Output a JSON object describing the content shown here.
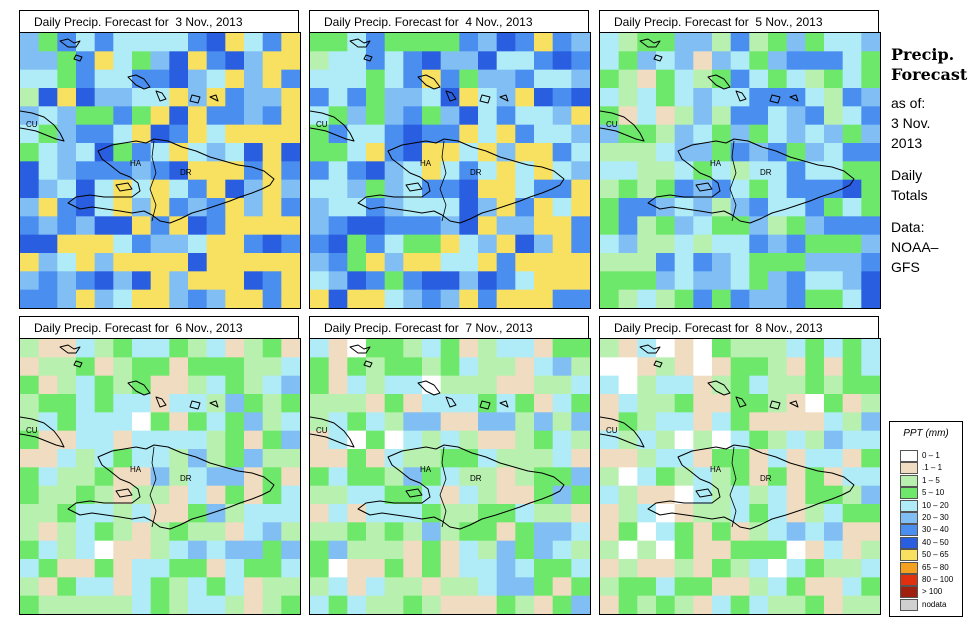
{
  "panels": [
    {
      "title": "Daily Precip. Forecast for  3 Nov., 2013",
      "wet": 0.95
    },
    {
      "title": "Daily Precip. Forecast for  4 Nov., 2013",
      "wet": 0.85
    },
    {
      "title": "Daily Precip. Forecast for  5 Nov., 2013",
      "wet": 0.55
    },
    {
      "title": "Daily Precip. Forecast for  6 Nov., 2013",
      "wet": 0.3
    },
    {
      "title": "Daily Precip. Forecast for  7 Nov., 2013",
      "wet": 0.28
    },
    {
      "title": "Daily Precip. Forecast for  8 Nov., 2013",
      "wet": 0.22
    }
  ],
  "map_labels": {
    "cuba": "CU",
    "haiti": "HA",
    "dominican_republic": "DR"
  },
  "info": {
    "title_line1": "Precip.",
    "title_line2": "Forecast",
    "asof": "as of:",
    "date_line1": "3 Nov.",
    "date_line2": "2013",
    "totals_line1": "Daily",
    "totals_line2": "Totals",
    "data_line1": "Data:",
    "data_line2": "NOAA–",
    "data_line3": "GFS"
  },
  "legend": {
    "title": "PPT (mm)",
    "items": [
      {
        "label": "0 – 1",
        "color": "#ffffff"
      },
      {
        "label": ".1 – 1",
        "color": "#f0dcc0"
      },
      {
        "label": "1 – 5",
        "color": "#b8f0b0"
      },
      {
        "label": "5 – 10",
        "color": "#6ee86a"
      },
      {
        "label": "10 – 20",
        "color": "#b0ecf8"
      },
      {
        "label": "20 – 30",
        "color": "#80bef4"
      },
      {
        "label": "30 – 40",
        "color": "#4a8ef0"
      },
      {
        "label": "40 – 50",
        "color": "#2a5ee0"
      },
      {
        "label": "50 – 65",
        "color": "#f8e060"
      },
      {
        "label": "65 – 80",
        "color": "#f4a020"
      },
      {
        "label": "80 – 100",
        "color": "#e03010"
      },
      {
        "label": "> 100",
        "color": "#a02010"
      },
      {
        "label": "nodata",
        "color": "#d0d0d0"
      }
    ]
  }
}
